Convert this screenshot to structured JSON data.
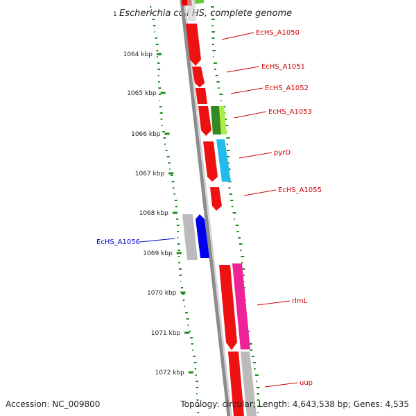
{
  "header": {
    "title": "Escherichia coli HS, complete genome",
    "title_prefix": "1"
  },
  "footer": {
    "accession": "Accession: NC_009800",
    "topology": "Topology: circular; Length: 4,643,538 bp; Genes: 4,535"
  },
  "colors": {
    "forward_label": "#cc0000",
    "reverse_label": "#0000cc",
    "backbone_dark": "#888888",
    "backbone_light": "#cccccc",
    "gc_ticks": "#1a8a1a"
  },
  "axis": {
    "tick_labels": [
      "1064 kbp",
      "1065 kbp",
      "1066 kbp",
      "1067 kbp",
      "1068 kbp",
      "1069 kbp",
      "1070 kbp",
      "1071 kbp",
      "1072 kbp"
    ]
  },
  "gene_labels": [
    {
      "text": "EcHS_A1050",
      "strand": "forward"
    },
    {
      "text": "EcHS_A1051",
      "strand": "forward"
    },
    {
      "text": "EcHS_A1052",
      "strand": "forward"
    },
    {
      "text": "EcHS_A1053",
      "strand": "forward"
    },
    {
      "text": "pyrD",
      "strand": "forward"
    },
    {
      "text": "EcHS_A1055",
      "strand": "forward"
    },
    {
      "text": "EcHS_A1056",
      "strand": "reverse"
    },
    {
      "text": "rlmL",
      "strand": "forward"
    },
    {
      "text": "uup",
      "strand": "forward"
    }
  ]
}
